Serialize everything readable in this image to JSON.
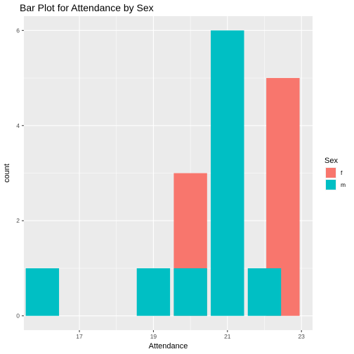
{
  "chart_data": {
    "type": "bar",
    "title": "Bar Plot for Attendance by Sex",
    "xlabel": "Attendance",
    "ylabel": "count",
    "xlim": [
      15.5,
      23.3
    ],
    "ylim": [
      -0.3,
      6.3
    ],
    "xticks": [
      17,
      19,
      21,
      23
    ],
    "yticks": [
      0,
      2,
      4,
      6
    ],
    "grid": true,
    "bar_width": 0.9,
    "legend": {
      "title": "Sex",
      "position": "right"
    },
    "series": [
      {
        "name": "f",
        "color": "#F8766D",
        "bars": [
          {
            "x": 20.0,
            "count": 3
          },
          {
            "x": 22.5,
            "count": 5
          }
        ]
      },
      {
        "name": "m",
        "color": "#00BFC4",
        "bars": [
          {
            "x": 16.0,
            "count": 1
          },
          {
            "x": 19.0,
            "count": 1
          },
          {
            "x": 20.0,
            "count": 1
          },
          {
            "x": 21.0,
            "count": 6
          },
          {
            "x": 22.0,
            "count": 1
          }
        ]
      }
    ]
  }
}
